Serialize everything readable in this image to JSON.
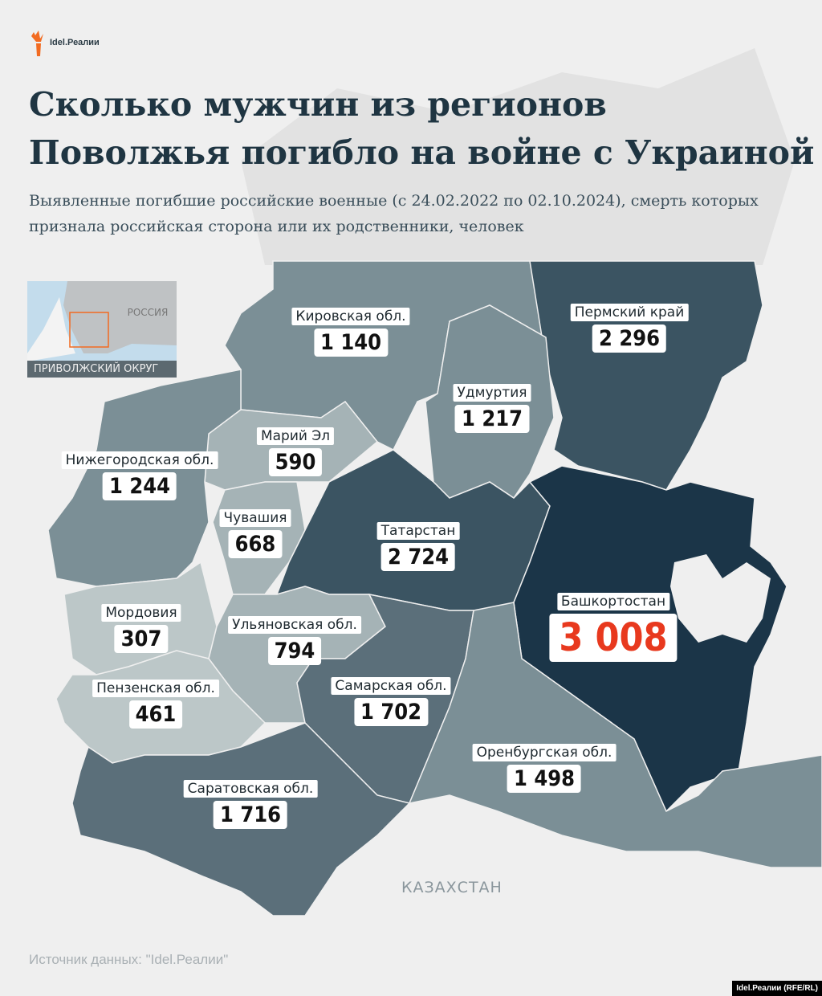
{
  "logo": {
    "text": "Idel.Реалии",
    "accent": "#f26b21"
  },
  "title": "Сколько мужчин из регионов Поволжья погибло на войне с Украиной",
  "subtitle": "Выявленные погибшие российские военные (с 24.02.2022 по 02.10.2024), смерть которых признала российская сторона или их родственники, человек",
  "inset": {
    "country": "РОССИЯ",
    "caption": "ПРИВОЛЖСКИЙ ОКРУГ"
  },
  "regions": [
    {
      "name": "Кировская обл.",
      "value": "1 140",
      "color": "#7b8f96"
    },
    {
      "name": "Пермский край",
      "value": "2 296",
      "color": "#3b5462"
    },
    {
      "name": "Удмуртия",
      "value": "1 217",
      "color": "#7b8f96"
    },
    {
      "name": "Марий Эл",
      "value": "590",
      "color": "#a5b3b6"
    },
    {
      "name": "Нижегородская обл.",
      "value": "1 244",
      "color": "#7b8f96"
    },
    {
      "name": "Чувашия",
      "value": "668",
      "color": "#a5b3b6"
    },
    {
      "name": "Татарстан",
      "value": "2 724",
      "color": "#3b5462"
    },
    {
      "name": "Башкортостан",
      "value": "3 008",
      "color": "#1b3548"
    },
    {
      "name": "Мордовия",
      "value": "307",
      "color": "#bcc7c8"
    },
    {
      "name": "Ульяновская обл.",
      "value": "794",
      "color": "#a5b3b6"
    },
    {
      "name": "Самарская обл.",
      "value": "1 702",
      "color": "#5b6f7a"
    },
    {
      "name": "Пензенская обл.",
      "value": "461",
      "color": "#bcc7c8"
    },
    {
      "name": "Оренбургская обл.",
      "value": "1 498",
      "color": "#7b8f96"
    },
    {
      "name": "Саратовская обл.",
      "value": "1 716",
      "color": "#5b6f7a"
    }
  ],
  "neighbor": "КАЗАХСТАН",
  "source": "Источник данных: \"Idel.Реалии\"",
  "credit": "Idel.Реалии (RFE/RL)",
  "highlight_color": "#e8391e"
}
